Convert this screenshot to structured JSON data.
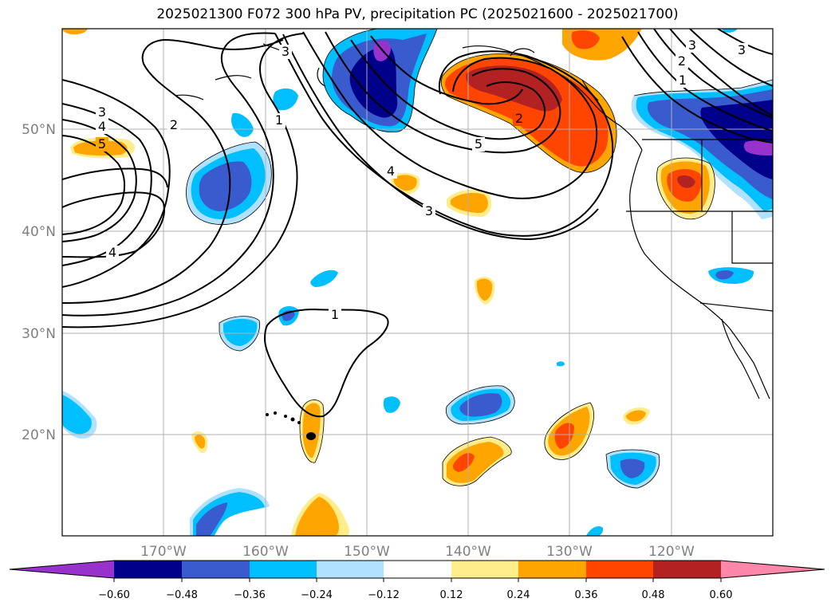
{
  "title": "2025021300 F072 300 hPa PV, precipitation PC (2025021600 - 2025021700)",
  "lat_labels": [
    "50°N",
    "40°N",
    "30°N",
    "20°N"
  ],
  "lon_labels": [
    "170°W",
    "160°W",
    "150°W",
    "140°W",
    "130°W",
    "120°W"
  ],
  "colorbar": {
    "ticks": [
      "−0.60",
      "−0.48",
      "−0.36",
      "−0.24",
      "−0.12",
      "0.12",
      "0.24",
      "0.36",
      "0.48",
      "0.60"
    ],
    "colors": [
      "#9932cc",
      "#00008b",
      "#3a5bcd",
      "#00bfff",
      "#b0e2ff",
      "#ffffff",
      "#ffec8b",
      "#ffa500",
      "#ff4500",
      "#b22222",
      "#ff88aa"
    ]
  },
  "contour_labels": [
    {
      "text": "3"
    },
    {
      "text": "4"
    },
    {
      "text": "5"
    },
    {
      "text": "2"
    },
    {
      "text": "4"
    },
    {
      "text": "1"
    },
    {
      "text": "3"
    },
    {
      "text": "2"
    },
    {
      "text": "5"
    },
    {
      "text": "4"
    },
    {
      "text": "3"
    },
    {
      "text": "1"
    },
    {
      "text": "3"
    },
    {
      "text": "2"
    },
    {
      "text": "1"
    },
    {
      "text": "3"
    }
  ],
  "legend_colors": {
    "purple": "#9932cc",
    "navy": "#00008b",
    "blue": "#3a5bcd",
    "cyan": "#00bfff",
    "light_cyan": "#b0e2ff",
    "yellow": "#ffec8b",
    "orange": "#ffa500",
    "red_orange": "#ff4500",
    "dark_red": "#b22222",
    "pink": "#ff88aa"
  }
}
